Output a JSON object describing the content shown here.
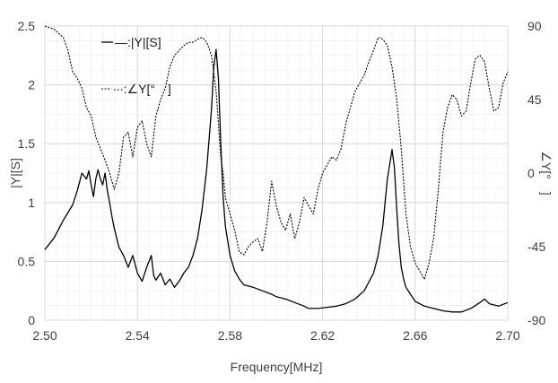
{
  "chart_data": {
    "type": "line",
    "xlabel": "Frequency[MHz]",
    "ylabel_left": "|Y|[S]",
    "ylabel_right": "∠Y[°　]",
    "xlim": [
      2.5,
      2.7
    ],
    "ylim_left": [
      0,
      2.5
    ],
    "ylim_right": [
      -90,
      90
    ],
    "x_ticks": [
      "2.50",
      "2.54",
      "2.58",
      "2.62",
      "2.66",
      "2.70"
    ],
    "y_left_ticks": [
      "0",
      "0.5",
      "1",
      "1.5",
      "2",
      "2.5"
    ],
    "y_right_ticks": [
      "-90",
      "-45",
      "0",
      "45",
      "90"
    ],
    "grid": true,
    "legend": {
      "placement": "top-left-inside",
      "entries": [
        "—:|Y|[S]",
        "∙∙∙:∠Y[°　]"
      ]
    },
    "series": [
      {
        "name": "|Y|[S]",
        "axis": "left",
        "style": "solid",
        "color": "#000000",
        "x": [
          2.5,
          2.504,
          2.508,
          2.512,
          2.514,
          2.516,
          2.518,
          2.519,
          2.52,
          2.521,
          2.522,
          2.523,
          2.524,
          2.525,
          2.526,
          2.527,
          2.528,
          2.529,
          2.53,
          2.532,
          2.534,
          2.536,
          2.538,
          2.54,
          2.542,
          2.544,
          2.546,
          2.547,
          2.548,
          2.55,
          2.552,
          2.554,
          2.556,
          2.558,
          2.56,
          2.562,
          2.564,
          2.566,
          2.568,
          2.57,
          2.572,
          2.573,
          2.574,
          2.575,
          2.576,
          2.577,
          2.578,
          2.58,
          2.582,
          2.584,
          2.586,
          2.59,
          2.594,
          2.598,
          2.6,
          2.604,
          2.608,
          2.612,
          2.614,
          2.618,
          2.622,
          2.626,
          2.63,
          2.634,
          2.638,
          2.642,
          2.644,
          2.646,
          2.648,
          2.65,
          2.651,
          2.652,
          2.653,
          2.654,
          2.655,
          2.656,
          2.658,
          2.66,
          2.664,
          2.668,
          2.672,
          2.676,
          2.68,
          2.684,
          2.688,
          2.69,
          2.692,
          2.696,
          2.7
        ],
        "y": [
          0.6,
          0.7,
          0.85,
          0.98,
          1.1,
          1.25,
          1.2,
          1.27,
          1.15,
          1.05,
          1.2,
          1.28,
          1.2,
          1.15,
          1.25,
          1.1,
          1.0,
          0.88,
          0.78,
          0.62,
          0.55,
          0.45,
          0.55,
          0.4,
          0.33,
          0.45,
          0.55,
          0.38,
          0.34,
          0.4,
          0.3,
          0.35,
          0.28,
          0.33,
          0.4,
          0.45,
          0.55,
          0.7,
          0.95,
          1.3,
          1.8,
          2.15,
          2.3,
          2.05,
          1.5,
          1.05,
          0.8,
          0.55,
          0.42,
          0.35,
          0.3,
          0.28,
          0.25,
          0.22,
          0.2,
          0.18,
          0.15,
          0.12,
          0.1,
          0.1,
          0.11,
          0.12,
          0.14,
          0.18,
          0.25,
          0.4,
          0.55,
          0.8,
          1.2,
          1.45,
          1.3,
          0.95,
          0.65,
          0.45,
          0.35,
          0.28,
          0.22,
          0.16,
          0.12,
          0.1,
          0.08,
          0.07,
          0.07,
          0.1,
          0.15,
          0.18,
          0.14,
          0.12,
          0.15
        ]
      },
      {
        "name": "∠Y[°　]",
        "axis": "right",
        "style": "dotted",
        "color": "#000000",
        "x": [
          2.5,
          2.504,
          2.508,
          2.51,
          2.512,
          2.514,
          2.516,
          2.518,
          2.52,
          2.522,
          2.524,
          2.526,
          2.528,
          2.53,
          2.532,
          2.534,
          2.536,
          2.538,
          2.54,
          2.542,
          2.544,
          2.546,
          2.548,
          2.55,
          2.552,
          2.554,
          2.556,
          2.558,
          2.56,
          2.562,
          2.564,
          2.566,
          2.568,
          2.57,
          2.572,
          2.574,
          2.575,
          2.576,
          2.577,
          2.578,
          2.58,
          2.582,
          2.584,
          2.586,
          2.588,
          2.59,
          2.592,
          2.594,
          2.596,
          2.598,
          2.6,
          2.602,
          2.604,
          2.606,
          2.608,
          2.61,
          2.612,
          2.614,
          2.616,
          2.618,
          2.62,
          2.622,
          2.624,
          2.626,
          2.628,
          2.63,
          2.632,
          2.634,
          2.636,
          2.638,
          2.64,
          2.642,
          2.644,
          2.646,
          2.648,
          2.65,
          2.652,
          2.654,
          2.656,
          2.658,
          2.66,
          2.662,
          2.664,
          2.666,
          2.668,
          2.67,
          2.672,
          2.674,
          2.676,
          2.678,
          2.68,
          2.682,
          2.684,
          2.686,
          2.688,
          2.69,
          2.692,
          2.694,
          2.696,
          2.698,
          2.7
        ],
        "y": [
          90,
          88,
          83,
          75,
          62,
          58,
          52,
          40,
          35,
          22,
          15,
          8,
          0,
          -10,
          0,
          22,
          25,
          10,
          28,
          32,
          18,
          10,
          35,
          45,
          52,
          65,
          72,
          75,
          78,
          80,
          80,
          82,
          83,
          80,
          72,
          50,
          30,
          10,
          0,
          -15,
          -25,
          -35,
          -48,
          -50,
          -45,
          -42,
          -40,
          -48,
          -30,
          -5,
          -20,
          -30,
          -35,
          -25,
          -40,
          -30,
          -15,
          -20,
          -25,
          -10,
          0,
          5,
          10,
          8,
          15,
          30,
          40,
          50,
          55,
          60,
          68,
          75,
          83,
          82,
          78,
          65,
          45,
          15,
          -25,
          -45,
          -55,
          -60,
          -65,
          -55,
          -40,
          -10,
          25,
          40,
          48,
          45,
          35,
          38,
          55,
          70,
          72,
          68,
          52,
          38,
          40,
          55,
          62
        ]
      }
    ]
  }
}
